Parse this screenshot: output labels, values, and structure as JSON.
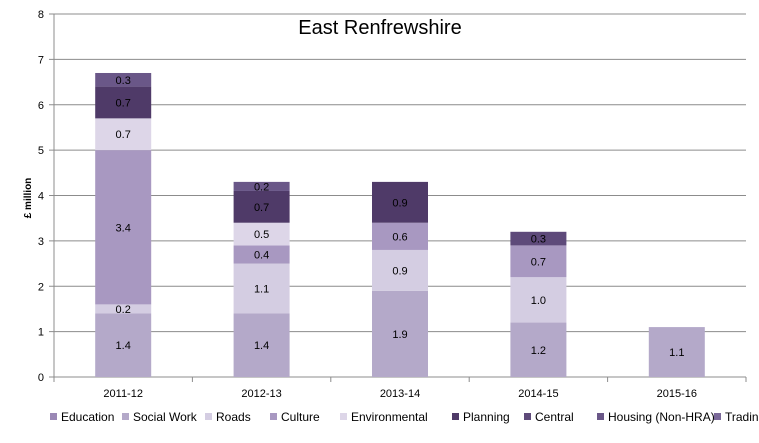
{
  "chart_data": {
    "type": "bar",
    "stacked": true,
    "title": "East Renfrewshire",
    "xlabel": "",
    "ylabel": "£ million",
    "ylim": [
      0,
      8
    ],
    "yticks": [
      "0",
      "1",
      "2",
      "3",
      "4",
      "5",
      "6",
      "7",
      "8"
    ],
    "grid": true,
    "legend_position": "bottom",
    "categories": [
      "2011-12",
      "2012-13",
      "2013-14",
      "2014-15",
      "2015-16"
    ],
    "series": [
      {
        "name": "Education",
        "color": "#9a88b5",
        "values": [
          0,
          0,
          0,
          0,
          0
        ],
        "labels": [
          "",
          "",
          "",
          "",
          ""
        ]
      },
      {
        "name": "Social Work",
        "color": "#b4a9c9",
        "values": [
          1.4,
          1.4,
          1.9,
          1.2,
          1.1
        ],
        "labels": [
          "1.4",
          "1.4",
          "1.9",
          "1.2",
          "1.1"
        ]
      },
      {
        "name": "Roads",
        "color": "#d4cde2",
        "values": [
          0.2,
          1.1,
          0.9,
          1.0,
          0
        ],
        "labels": [
          "0.2",
          "1.1",
          "0.9",
          "1.0",
          ""
        ]
      },
      {
        "name": "Culture",
        "color": "#a898c1",
        "values": [
          3.4,
          0.4,
          0.6,
          0.7,
          0
        ],
        "labels": [
          "3.4",
          "0.4",
          "0.6",
          "0.7",
          ""
        ]
      },
      {
        "name": "Environmental",
        "color": "#ddd6e8",
        "values": [
          0.7,
          0.5,
          0,
          0,
          0
        ],
        "labels": [
          "0.7",
          "0.5",
          "",
          "",
          ""
        ]
      },
      {
        "name": "Planning",
        "color": "#4f3a68",
        "values": [
          0.7,
          0.7,
          0.9,
          0,
          0
        ],
        "labels": [
          "0.7",
          "0.7",
          "0.9",
          "",
          ""
        ]
      },
      {
        "name": "Central",
        "color": "#5e4a7a",
        "values": [
          0,
          0,
          0,
          0.3,
          0
        ],
        "labels": [
          "",
          "",
          "",
          "0.3",
          ""
        ]
      },
      {
        "name": "Housing (Non-HRA)",
        "color": "#6a5788",
        "values": [
          0.3,
          0.2,
          0,
          0,
          0
        ],
        "labels": [
          "0.3",
          "0.2",
          "",
          "",
          ""
        ]
      },
      {
        "name": "Trading",
        "color": "#7a6899",
        "values": [
          0,
          0,
          0,
          0,
          0
        ],
        "labels": [
          "",
          "",
          "",
          "",
          ""
        ]
      }
    ]
  }
}
